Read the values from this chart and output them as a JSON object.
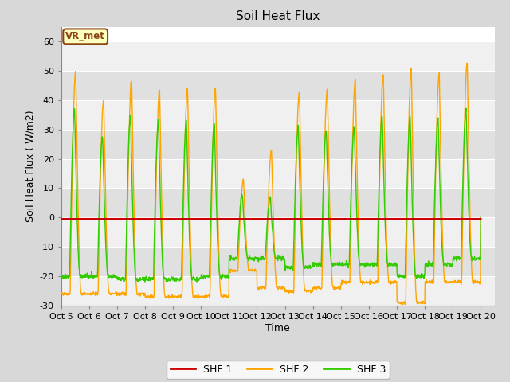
{
  "title": "Soil Heat Flux",
  "ylabel": "Soil Heat Flux ( W/m2)",
  "xlabel": "Time",
  "ylim": [
    -30,
    65
  ],
  "yticks": [
    -30,
    -20,
    -10,
    0,
    10,
    20,
    30,
    40,
    50,
    60
  ],
  "fig_bg_color": "#d8d8d8",
  "ax_bg_color": "#ffffff",
  "band_light": "#f0f0f0",
  "band_dark": "#e0e0e0",
  "shf1_color": "#cc0000",
  "shf2_color": "#ffa500",
  "shf3_color": "#33cc00",
  "annotation_text": "VR_met",
  "annotation_bg": "#ffffc0",
  "annotation_border": "#8B4513",
  "legend_labels": [
    "SHF 1",
    "SHF 2",
    "SHF 3"
  ],
  "shf2_amps": [
    50,
    40,
    47,
    44,
    44,
    44,
    13,
    23,
    43,
    44,
    47,
    49,
    51,
    49,
    53
  ],
  "shf2_nights": [
    -26,
    -26,
    -26,
    -27,
    -27,
    -27,
    -18,
    -24,
    -25,
    -24,
    -22,
    -22,
    -29,
    -22,
    -22
  ],
  "shf3_amps": [
    37,
    28,
    35,
    33,
    33,
    32,
    8,
    7,
    31,
    30,
    31,
    35,
    35,
    34,
    37
  ],
  "shf3_nights": [
    -20,
    -20,
    -21,
    -21,
    -21,
    -20,
    -14,
    -14,
    -17,
    -16,
    -16,
    -16,
    -20,
    -16,
    -14
  ],
  "tick_labels": [
    "Oct 5",
    "Oct 6",
    "Oct 7",
    "Oct 8",
    "Oct 9",
    "Oct 10",
    "Oct 11",
    "Oct 12",
    "Oct 13",
    "Oct 14",
    "Oct 15",
    "Oct 16",
    "Oct 17",
    "Oct 18",
    "Oct 19",
    "Oct 20"
  ]
}
